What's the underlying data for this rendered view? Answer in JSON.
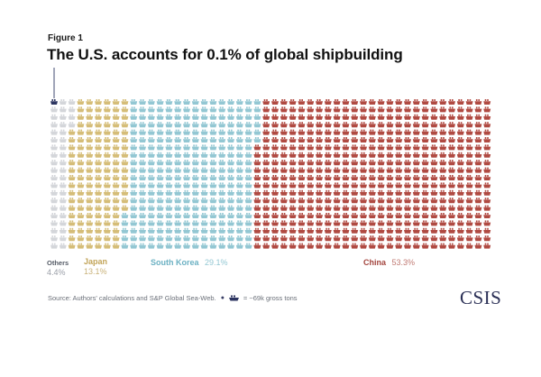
{
  "figure_label": "Figure 1",
  "title": "The U.S. accounts for 0.1% of global shipbuilding",
  "source": "Source: Authors' calculations and S&P Global Sea-Web.",
  "legend_unit": "= ~69k gross tons",
  "logo": "CSIS",
  "colors": {
    "United States": "#2d3561",
    "Others": "#d4d6da",
    "Japan": "#d5bd78",
    "South Korea": "#93c7d3",
    "China": "#b04a42"
  },
  "icon": "ship-icon",
  "chart_data": {
    "type": "waffle",
    "categories": [
      "Others",
      "Japan",
      "South Korea",
      "China"
    ],
    "values": [
      4.4,
      13.1,
      29.1,
      53.3
    ],
    "labels": [
      {
        "name": "Others",
        "pct": "4.4%"
      },
      {
        "name": "Japan",
        "pct": "13.1%"
      },
      {
        "name": "South Korea",
        "pct": "29.1%"
      },
      {
        "name": "China",
        "pct": "53.3%"
      }
    ],
    "highlight": {
      "name": "United States",
      "value": 0.1
    }
  }
}
